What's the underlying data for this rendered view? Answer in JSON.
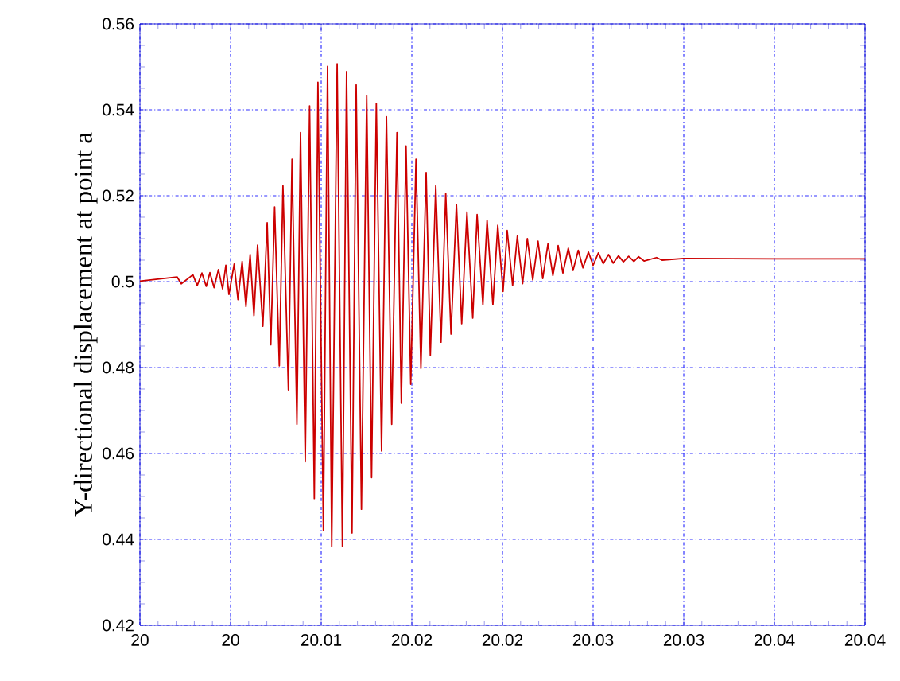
{
  "chart_data": {
    "type": "line",
    "ylabel": "Y-directional displacement at point a",
    "xlim": [
      20,
      20.04
    ],
    "ylim": [
      0.42,
      0.56
    ],
    "xticks": [
      {
        "value": 20,
        "label": "20"
      },
      {
        "value": 20.005,
        "label": "20"
      },
      {
        "value": 20.01,
        "label": "20.01"
      },
      {
        "value": 20.015,
        "label": "20.02"
      },
      {
        "value": 20.02,
        "label": "20.02"
      },
      {
        "value": 20.025,
        "label": "20.03"
      },
      {
        "value": 20.03,
        "label": "20.03"
      },
      {
        "value": 20.035,
        "label": "20.04"
      },
      {
        "value": 20.04,
        "label": "20.04"
      }
    ],
    "yticks": [
      0.42,
      0.44,
      0.46,
      0.48,
      0.5,
      0.52,
      0.54,
      0.56
    ],
    "grid": true,
    "marker": "none",
    "line_style": "solid",
    "series": [
      {
        "color": "#cc0000",
        "x": [
          20.0,
          20.00205,
          20.00228,
          20.00292,
          20.00316,
          20.00342,
          20.00366,
          20.00386,
          20.00409,
          20.00433,
          20.00456,
          20.00474,
          20.00491,
          20.0052,
          20.00541,
          20.00564,
          20.00585,
          20.00608,
          20.00629,
          20.00649,
          20.00678,
          20.00702,
          20.00722,
          20.00743,
          20.00769,
          20.00789,
          20.00819,
          20.00839,
          20.00866,
          20.00886,
          20.00912,
          20.00936,
          20.00962,
          20.00982,
          20.01012,
          20.01035,
          20.01058,
          20.01088,
          20.01117,
          20.0114,
          20.0117,
          20.01193,
          20.01222,
          20.01251,
          20.01278,
          20.01304,
          20.01333,
          20.0136,
          20.01389,
          20.01418,
          20.01442,
          20.01468,
          20.01494,
          20.01523,
          20.0155,
          20.01579,
          20.01602,
          20.01632,
          20.01661,
          20.01687,
          20.01716,
          20.01746,
          20.01775,
          20.01804,
          20.01836,
          20.0186,
          20.01892,
          20.01915,
          20.01947,
          20.01974,
          20.02003,
          20.02026,
          20.02056,
          20.02082,
          20.02111,
          20.02137,
          20.02167,
          20.02196,
          20.02222,
          20.02251,
          20.02278,
          20.02307,
          20.02333,
          20.02363,
          20.02389,
          20.02418,
          20.02444,
          20.02474,
          20.025,
          20.02529,
          20.02556,
          20.02585,
          20.02611,
          20.0264,
          20.02667,
          20.02696,
          20.02725,
          20.02751,
          20.02781,
          20.0285,
          20.0288,
          20.03,
          20.035,
          20.04
        ],
        "values": [
          0.5001,
          0.5011,
          0.4995,
          0.5016,
          0.4991,
          0.502,
          0.4989,
          0.5021,
          0.4986,
          0.5028,
          0.4983,
          0.5038,
          0.497,
          0.5041,
          0.4958,
          0.5047,
          0.4942,
          0.5063,
          0.4921,
          0.5085,
          0.4896,
          0.5137,
          0.4853,
          0.5174,
          0.4804,
          0.5223,
          0.4748,
          0.5285,
          0.4668,
          0.5347,
          0.4581,
          0.5409,
          0.4495,
          0.5464,
          0.4421,
          0.5501,
          0.4384,
          0.5507,
          0.4384,
          0.5489,
          0.4415,
          0.5458,
          0.447,
          0.5433,
          0.4544,
          0.5415,
          0.4606,
          0.5384,
          0.4668,
          0.5347,
          0.4717,
          0.5316,
          0.4761,
          0.5285,
          0.4798,
          0.5254,
          0.4828,
          0.5223,
          0.4859,
          0.5205,
          0.4878,
          0.518,
          0.4902,
          0.5162,
          0.4915,
          0.5156,
          0.4946,
          0.5143,
          0.4946,
          0.5131,
          0.4977,
          0.5119,
          0.4991,
          0.5106,
          0.4995,
          0.51,
          0.5004,
          0.5094,
          0.5007,
          0.5088,
          0.5014,
          0.5084,
          0.502,
          0.5078,
          0.5026,
          0.5073,
          0.5032,
          0.5069,
          0.5038,
          0.5067,
          0.5042,
          0.5063,
          0.5043,
          0.506,
          0.5046,
          0.5059,
          0.5047,
          0.5058,
          0.5048,
          0.5056,
          0.505,
          0.5054,
          0.5053,
          0.5053
        ]
      }
    ]
  }
}
